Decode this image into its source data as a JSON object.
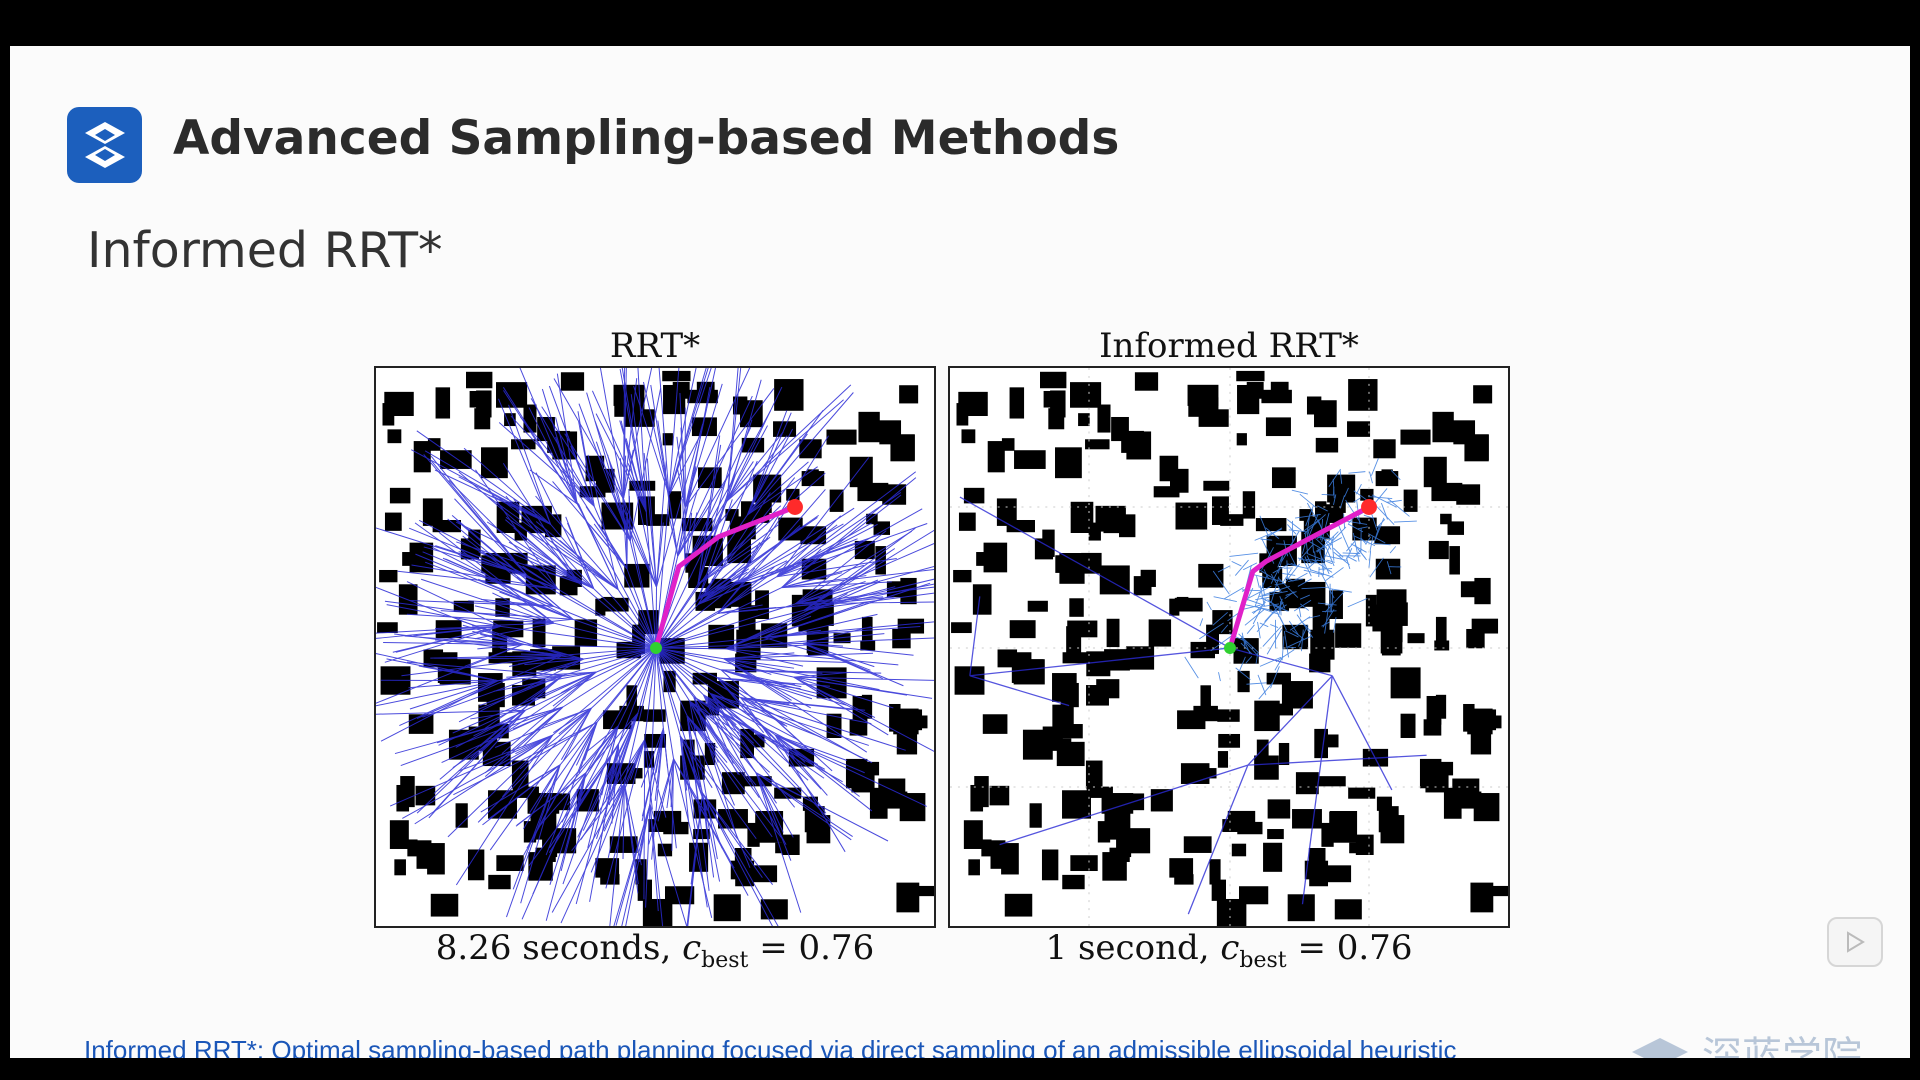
{
  "slide": {
    "title": "Advanced Sampling-based Methods",
    "subtitle": "Informed RRT*",
    "logo_icon": "s-logo-icon",
    "accent_color": "#1c5fbd"
  },
  "figure": {
    "left_panel": {
      "title": "RRT*",
      "caption_prefix": "8.26 seconds, ",
      "caption_var": "c",
      "caption_sub": "best",
      "caption_suffix": " = 0.76"
    },
    "right_panel": {
      "title": "Informed RRT*",
      "caption_prefix": "1 second, ",
      "caption_var": "c",
      "caption_sub": "best",
      "caption_suffix": " = 0.76"
    },
    "tree_color": "#2b2bd6",
    "path_color": "#e020c8",
    "goal_color": "#ff2a2a",
    "start_color": "#30d030"
  },
  "reference": {
    "text": "Informed RRT*: Optimal sampling-based path planning focused via direct sampling of an admissible ellipsoidal heuristic"
  },
  "watermark": {
    "text": "深蓝学院"
  },
  "player": {
    "play_icon": "play-icon"
  }
}
